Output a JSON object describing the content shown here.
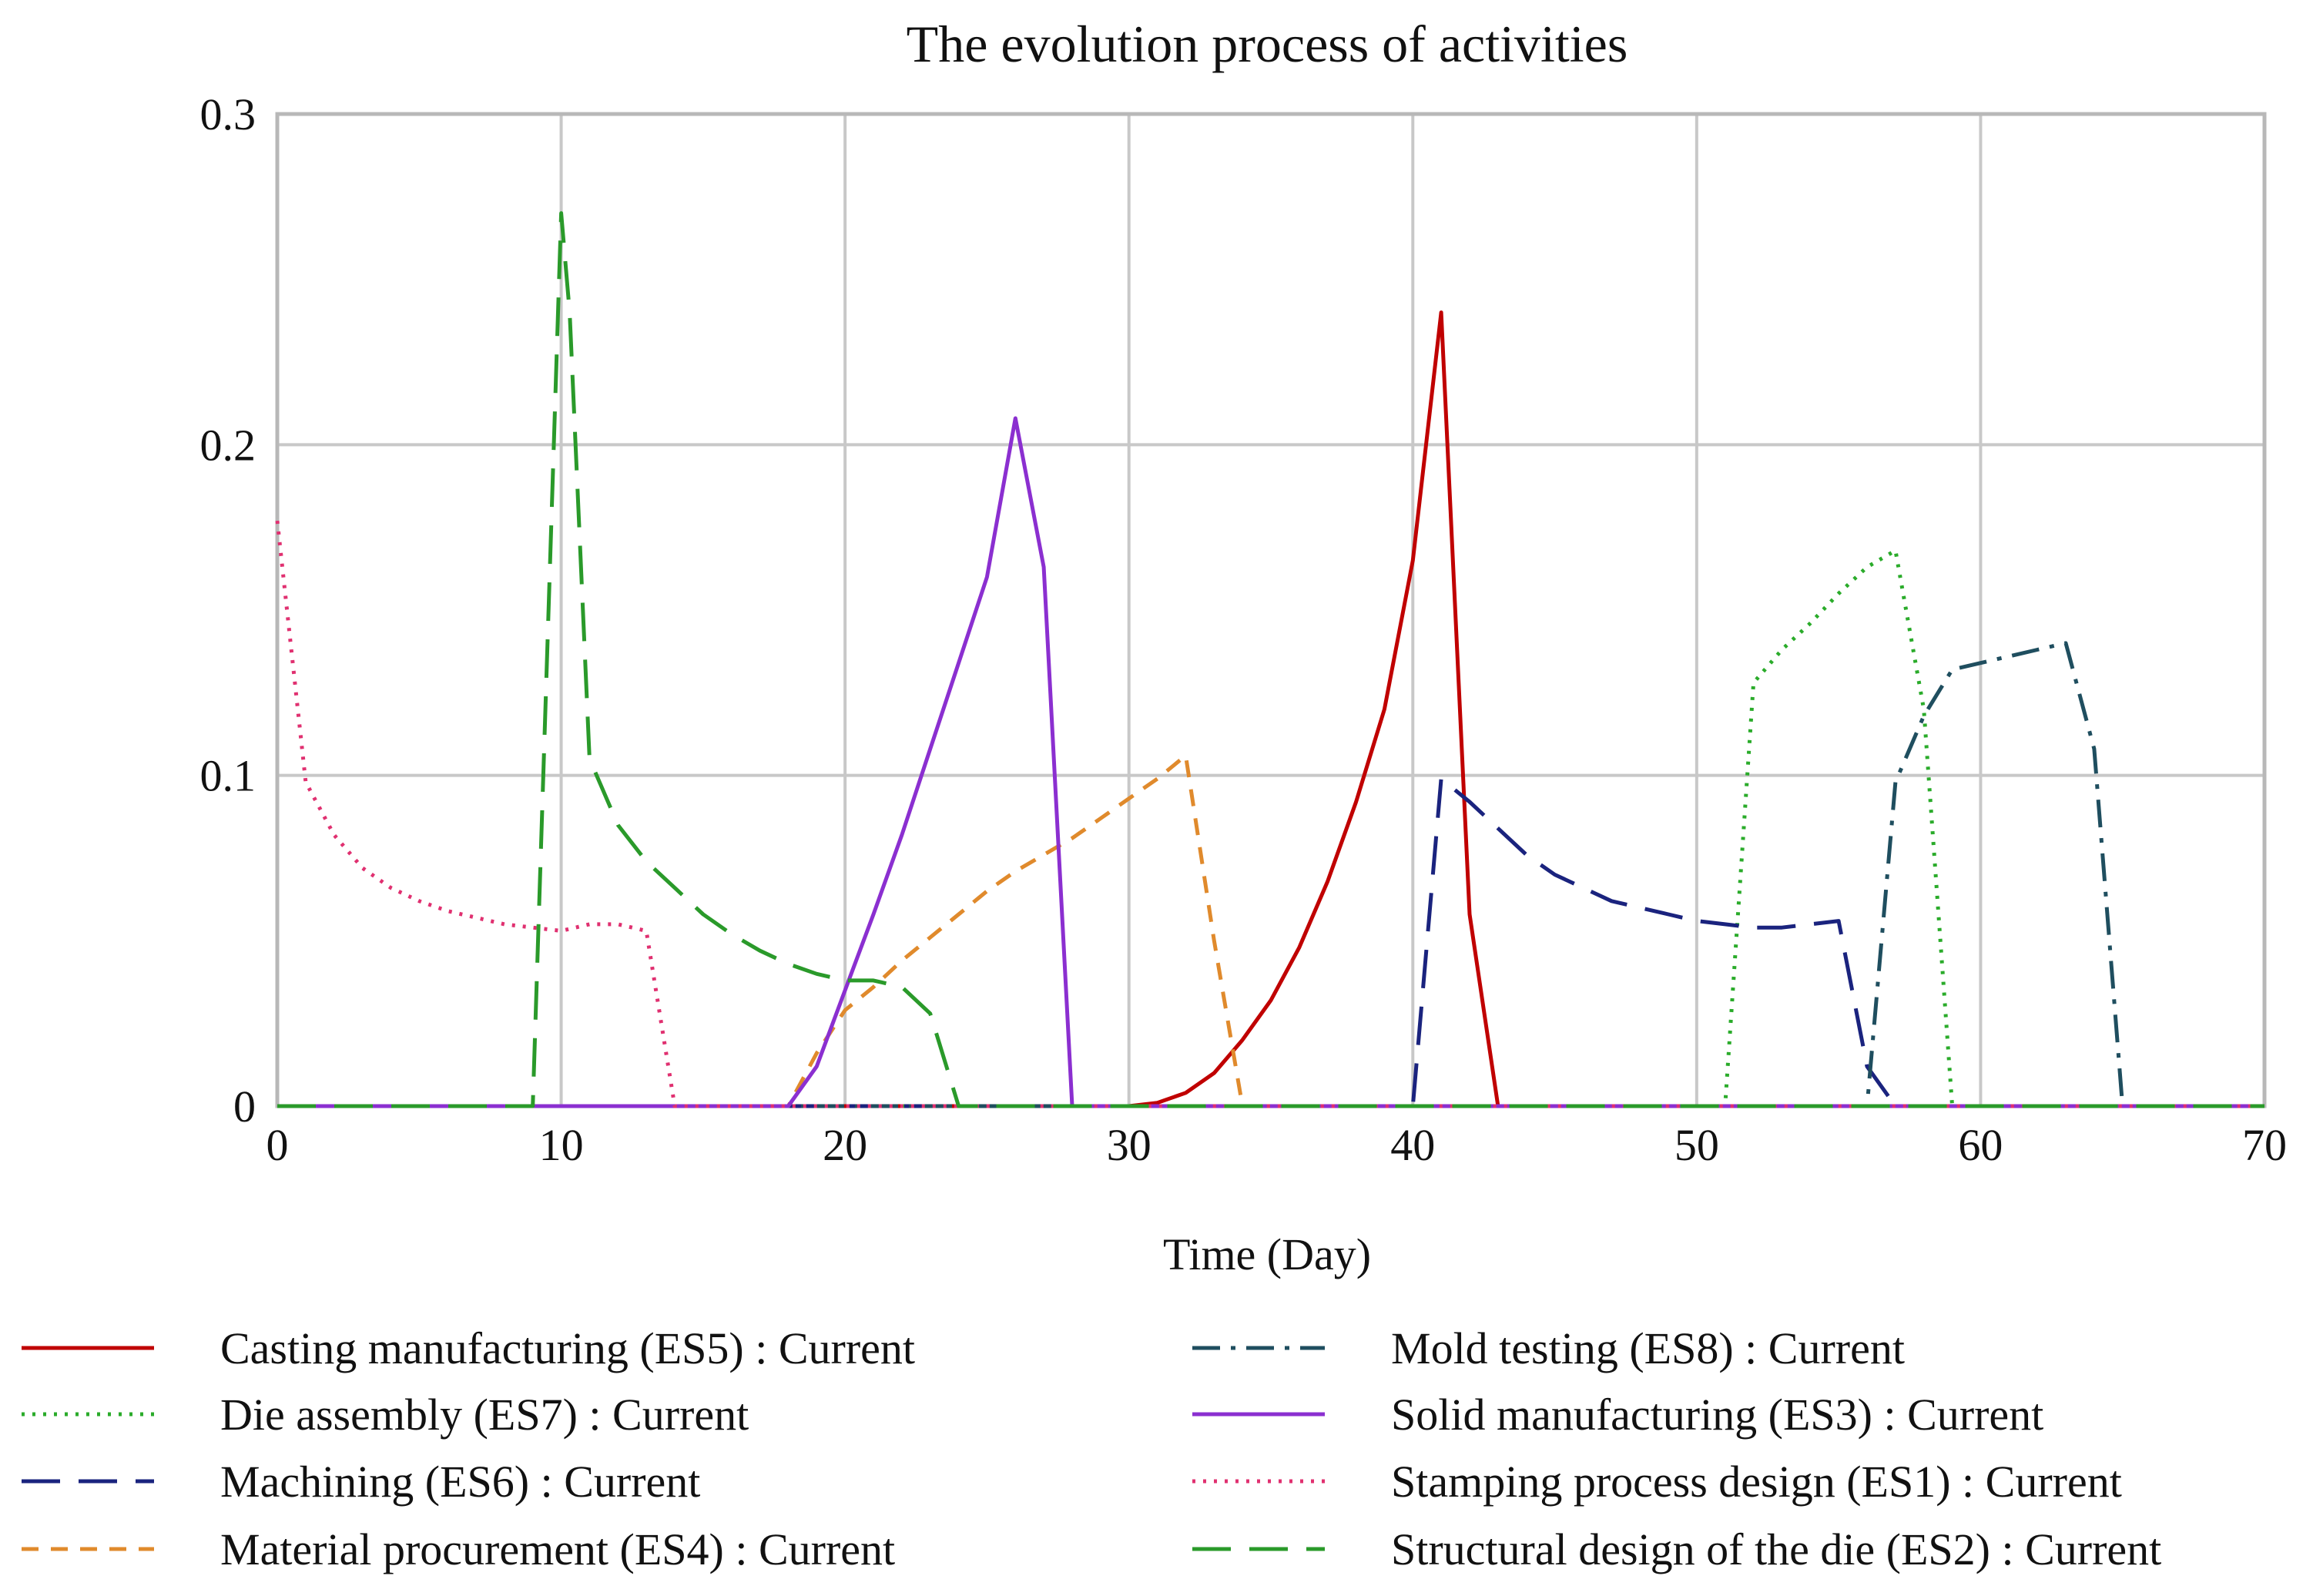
{
  "chart_data": {
    "type": "line",
    "title": "The evolution process of activities",
    "xlabel": "Time (Day)",
    "ylabel": "",
    "xlim": [
      0,
      70
    ],
    "ylim": [
      0,
      0.3
    ],
    "x_ticks": [
      0,
      10,
      20,
      30,
      40,
      50,
      60,
      70
    ],
    "y_ticks": [
      0,
      0.1,
      0.2,
      0.3
    ],
    "x_tick_labels": [
      "0",
      "10",
      "20",
      "30",
      "40",
      "50",
      "60",
      "70"
    ],
    "y_tick_labels": [
      "0",
      "0.1",
      "0.2",
      "0.3"
    ],
    "grid": true,
    "legend_position": "bottom",
    "series": [
      {
        "name": "Casting manufacturing (ES5) : Current",
        "color": "#c00000",
        "dash": "solid",
        "x": [
          0,
          30,
          31,
          32,
          33,
          34,
          35,
          36,
          37,
          38,
          39,
          40,
          41,
          42,
          43,
          70
        ],
        "y": [
          0,
          0,
          0.001,
          0.004,
          0.01,
          0.02,
          0.032,
          0.048,
          0.068,
          0.092,
          0.12,
          0.165,
          0.24,
          0.058,
          0,
          0
        ]
      },
      {
        "name": "Die assembly (ES7) : Current",
        "color": "#2aab2a",
        "dash": "dotted",
        "x": [
          0,
          51,
          52,
          53,
          54,
          55,
          56,
          57,
          58,
          59,
          70
        ],
        "y": [
          0,
          0,
          0.128,
          0.138,
          0.146,
          0.155,
          0.163,
          0.168,
          0.12,
          0,
          0
        ]
      },
      {
        "name": "Machining (ES6) : Current",
        "color": "#1a237e",
        "dash": "longdash",
        "x": [
          0,
          40,
          41,
          42,
          43,
          44,
          45,
          46,
          47,
          48,
          49,
          50,
          51,
          52,
          53,
          54,
          55,
          56,
          57,
          70
        ],
        "y": [
          0,
          0,
          0.099,
          0.092,
          0.084,
          0.076,
          0.07,
          0.066,
          0.062,
          0.06,
          0.058,
          0.056,
          0.055,
          0.054,
          0.054,
          0.055,
          0.056,
          0.012,
          0,
          0
        ]
      },
      {
        "name": "Material procurement (ES4) : Current",
        "color": "#e08a2c",
        "dash": "dash",
        "x": [
          0,
          18,
          19,
          20,
          21,
          22,
          23,
          24,
          25,
          26,
          27,
          28,
          29,
          30,
          31,
          32,
          33,
          34,
          70
        ],
        "y": [
          0,
          0,
          0.016,
          0.029,
          0.036,
          0.044,
          0.051,
          0.058,
          0.065,
          0.071,
          0.076,
          0.081,
          0.087,
          0.093,
          0.099,
          0.106,
          0.05,
          0,
          0
        ]
      },
      {
        "name": "Mold testing (ES8) : Current",
        "color": "#1f4e5f",
        "dash": "dashdot",
        "x": [
          0,
          56,
          57,
          58,
          59,
          60,
          61,
          62,
          63,
          64,
          65,
          70
        ],
        "y": [
          0,
          0,
          0.098,
          0.118,
          0.132,
          0.134,
          0.136,
          0.138,
          0.14,
          0.108,
          0,
          0
        ]
      },
      {
        "name": "Solid manufacturing (ES3) : Current",
        "color": "#8b2fd0",
        "dash": "solid",
        "x": [
          0,
          18,
          19,
          20,
          21,
          22,
          23,
          24,
          25,
          26,
          27,
          28,
          70
        ],
        "y": [
          0,
          0,
          0.012,
          0.035,
          0.058,
          0.082,
          0.108,
          0.134,
          0.16,
          0.208,
          0.163,
          0,
          0
        ]
      },
      {
        "name": "Stamping process design (ES1) : Current",
        "color": "#e03070",
        "dash": "dotted",
        "x": [
          0,
          1,
          2,
          3,
          4,
          5,
          6,
          7,
          8,
          9,
          10,
          11,
          12,
          13,
          14,
          70
        ],
        "y": [
          0.177,
          0.098,
          0.082,
          0.072,
          0.066,
          0.062,
          0.059,
          0.057,
          0.055,
          0.054,
          0.053,
          0.055,
          0.055,
          0.053,
          0,
          0
        ]
      },
      {
        "name": "Structural design of the die (ES2) : Current",
        "color": "#2a9a2a",
        "dash": "longdash",
        "x": [
          0,
          9,
          10,
          10.3,
          11,
          12,
          13,
          14,
          15,
          16,
          17,
          18,
          19,
          20,
          21,
          22,
          23,
          24,
          70
        ],
        "y": [
          0,
          0,
          0.27,
          0.24,
          0.105,
          0.085,
          0.074,
          0.066,
          0.058,
          0.052,
          0.047,
          0.043,
          0.04,
          0.038,
          0.038,
          0.036,
          0.028,
          0,
          0
        ]
      }
    ]
  }
}
